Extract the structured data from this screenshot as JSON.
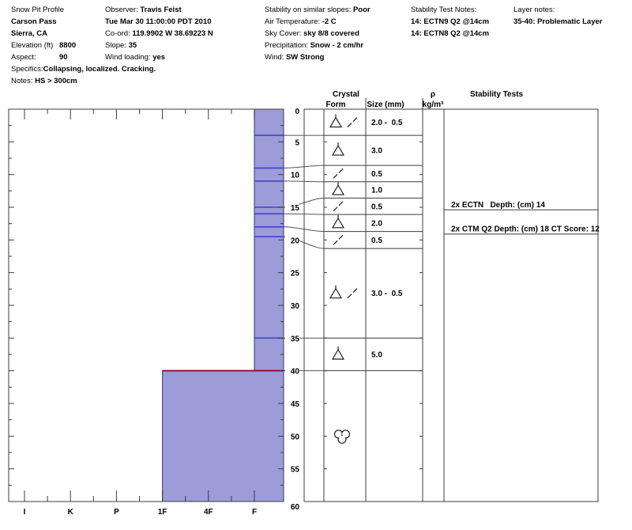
{
  "header": {
    "columns": [
      {
        "lines": [
          {
            "label": "Snow Pit Profile",
            "value": ""
          },
          {
            "label": "",
            "value": "Carson Pass"
          },
          {
            "label": "",
            "value": "Sierra, CA"
          },
          {
            "label": "Elevation (ft)",
            "value": "8800",
            "tab": true
          },
          {
            "label": "Aspect:",
            "value": "90",
            "tab": true
          },
          {
            "label": "Specifics:",
            "value": "Collapsing, localized. Cracking."
          },
          {
            "label": "Notes: ",
            "value": "HS > 300cm"
          }
        ]
      },
      {
        "lines": [
          {
            "label": "Observer: ",
            "value": "Travis Feist"
          },
          {
            "label": "",
            "value": "Tue Mar 30 11:00:00 PDT 2010"
          },
          {
            "label": "Co-ord: ",
            "value": "119.9902 W 38.69223 N"
          },
          {
            "label": "Slope: ",
            "value": "35"
          },
          {
            "label": "Wind loading: ",
            "value": "yes"
          }
        ]
      },
      {
        "lines": [
          {
            "label": "Stability on similar slopes: ",
            "value": "Poor"
          },
          {
            "label": "Air Temperature: ",
            "value": "-2 C"
          },
          {
            "label": "Sky Cover: ",
            "value": "sky 8/8 covered"
          },
          {
            "label": "Precipitation: ",
            "value": "Snow - 2 cm/hr"
          },
          {
            "label": "Wind: ",
            "value": "SW Strong"
          }
        ]
      },
      {
        "lines": [
          {
            "label": "Stability Test Notes:",
            "value": ""
          },
          {
            "label": "",
            "value": "14: ECTN9 Q2 @14cm"
          },
          {
            "label": "",
            "value": "14: ECTN8 Q2 @14cm"
          }
        ]
      },
      {
        "lines": [
          {
            "label": "Layer notes:",
            "value": ""
          },
          {
            "label": "",
            "value": "35-40: Problematic Layer"
          }
        ]
      }
    ]
  },
  "chart_data": {
    "type": "bar",
    "title": "Snow pit hardness profile",
    "hardness_axis": {
      "categories": [
        "I",
        "K",
        "P",
        "1F",
        "4F",
        "F"
      ]
    },
    "depth_axis": {
      "unit": "cm",
      "min": 0,
      "max": 60,
      "tick_step": 5
    },
    "column_headers": {
      "crystal": "Crystal",
      "form": "Form",
      "size": "Size (mm)",
      "rho": "ρ",
      "rho_units": "kg/m³",
      "stability": "Stability Tests"
    },
    "layers": [
      {
        "top_cm": 0,
        "bottom_cm": 4,
        "hardness": "F",
        "forms": [
          "triangle",
          "slash"
        ],
        "size_mm": "2.0 -  0.5"
      },
      {
        "top_cm": 4,
        "bottom_cm": 9,
        "hardness": "F",
        "forms": [
          "triangle"
        ],
        "size_mm": "3.0"
      },
      {
        "top_cm": 9,
        "bottom_cm": 11,
        "hardness": "F",
        "forms": [
          "slash"
        ],
        "size_mm": "0.5"
      },
      {
        "top_cm": 11,
        "bottom_cm": 15,
        "hardness": "F",
        "forms": [
          "triangle"
        ],
        "size_mm": "1.0"
      },
      {
        "top_cm": 15,
        "bottom_cm": 16,
        "hardness": "F",
        "forms": [
          "slash"
        ],
        "size_mm": "0.5"
      },
      {
        "top_cm": 16,
        "bottom_cm": 18,
        "hardness": "F",
        "forms": [
          "triangle"
        ],
        "size_mm": "2.0"
      },
      {
        "top_cm": 18,
        "bottom_cm": 19.5,
        "hardness": "F",
        "forms": [
          "slash"
        ],
        "size_mm": "0.5"
      },
      {
        "top_cm": 19.5,
        "bottom_cm": 35,
        "hardness": "F",
        "forms": [
          "triangle",
          "slash"
        ],
        "size_mm": "3.0 -  0.5"
      },
      {
        "top_cm": 35,
        "bottom_cm": 40,
        "hardness": "F",
        "forms": [
          "triangle"
        ],
        "size_mm": "5.0"
      },
      {
        "top_cm": 40,
        "bottom_cm": 60,
        "hardness": "1F",
        "forms": [
          "cluster"
        ],
        "size_mm": ""
      }
    ],
    "flag_line_depth_cm": 40,
    "stability_tests": [
      {
        "text": "2x ECTN   Depth: (cm) 14",
        "line_depth_cm": 15.4
      },
      {
        "text": "2x CTM Q2 Depth: (cm) 18 CT Score: 12",
        "line_depth_cm": 19.1
      }
    ],
    "colors": {
      "bar_fill": "#9c9cd8",
      "bar_outline": "#4a4aae",
      "layer_line": "#4343cb",
      "flag_line": "#991038",
      "frame": "#3c3c3c",
      "connector": "#555555",
      "text": "#000000"
    }
  }
}
